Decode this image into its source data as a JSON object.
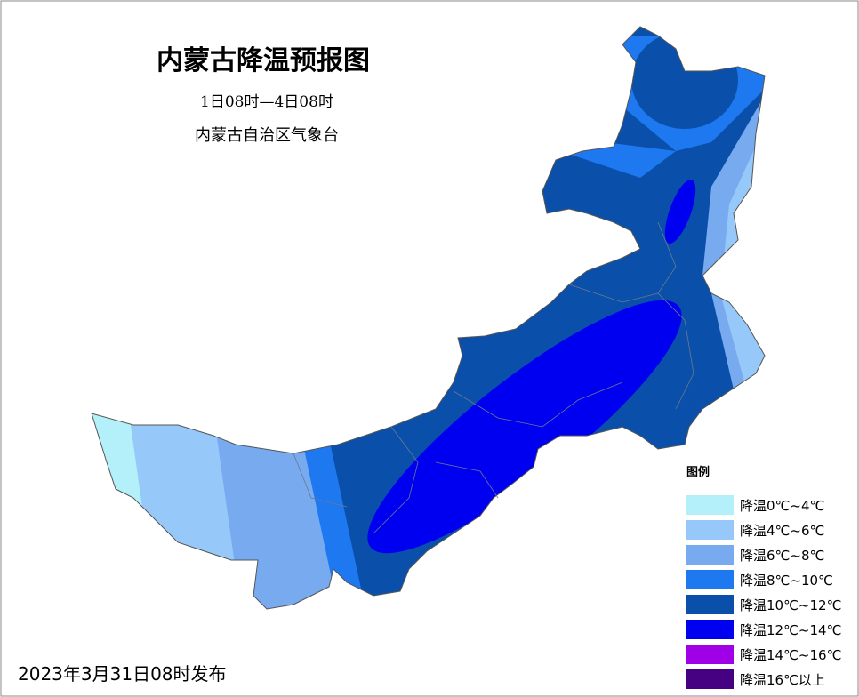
{
  "header": {
    "title": "内蒙古降温预报图",
    "period": "1日08时—4日08时",
    "issuer": "内蒙古自治区气象台"
  },
  "legend": {
    "title": "图例",
    "items": [
      {
        "label": "降温0℃~4℃",
        "color": "#b4f0fa"
      },
      {
        "label": "降温4℃~6℃",
        "color": "#96c8fa"
      },
      {
        "label": "降温6℃~8℃",
        "color": "#78aaf0"
      },
      {
        "label": "降温8℃~10℃",
        "color": "#1e78f0"
      },
      {
        "label": "降温10℃~12℃",
        "color": "#0a50aa"
      },
      {
        "label": "降温12℃~14℃",
        "color": "#0000f0"
      },
      {
        "label": "降温14℃~16℃",
        "color": "#a000e6"
      },
      {
        "label": "降温16℃以上",
        "color": "#460082"
      }
    ]
  },
  "footer": "2023年3月31日08时发布"
}
